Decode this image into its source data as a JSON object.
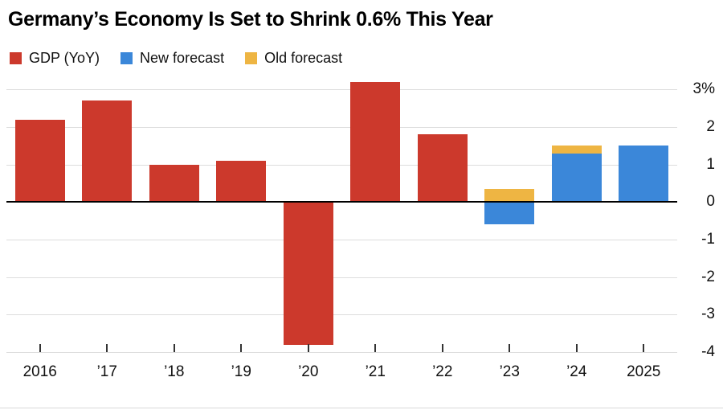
{
  "title": "Germany’s Economy Is Set to Shrink 0.6% This Year",
  "legend": [
    {
      "label": "GDP (YoY)",
      "color": "#cc392c"
    },
    {
      "label": "New forecast",
      "color": "#3b87d9"
    },
    {
      "label": "Old forecast",
      "color": "#eeb543"
    }
  ],
  "chart_data": {
    "type": "bar",
    "title": "Germany’s Economy Is Set to Shrink 0.6% This Year",
    "categories": [
      "2016",
      "’17",
      "’18",
      "’19",
      "’20",
      "’21",
      "’22",
      "’23",
      "’24",
      "2025"
    ],
    "series": [
      {
        "name": "GDP (YoY)",
        "color": "#cc392c",
        "values": [
          2.2,
          2.7,
          1.0,
          1.1,
          -3.8,
          3.2,
          1.8,
          null,
          null,
          null
        ]
      },
      {
        "name": "Old forecast",
        "color": "#eeb543",
        "values": [
          null,
          null,
          null,
          null,
          null,
          null,
          null,
          0.35,
          1.5,
          null
        ]
      },
      {
        "name": "New forecast",
        "color": "#3b87d9",
        "values": [
          null,
          null,
          null,
          null,
          null,
          null,
          null,
          -0.6,
          1.3,
          1.5
        ]
      }
    ],
    "ylim": [
      -4,
      3
    ],
    "yticks": [
      3,
      2,
      1,
      0,
      -1,
      -2,
      -3,
      -4
    ],
    "ytick_labels": [
      "3%",
      "2",
      "1",
      "0",
      "-1",
      "-2",
      "-3",
      "-4"
    ],
    "xlabel": "",
    "ylabel": "",
    "grid": true,
    "legend_position": "top-left"
  }
}
